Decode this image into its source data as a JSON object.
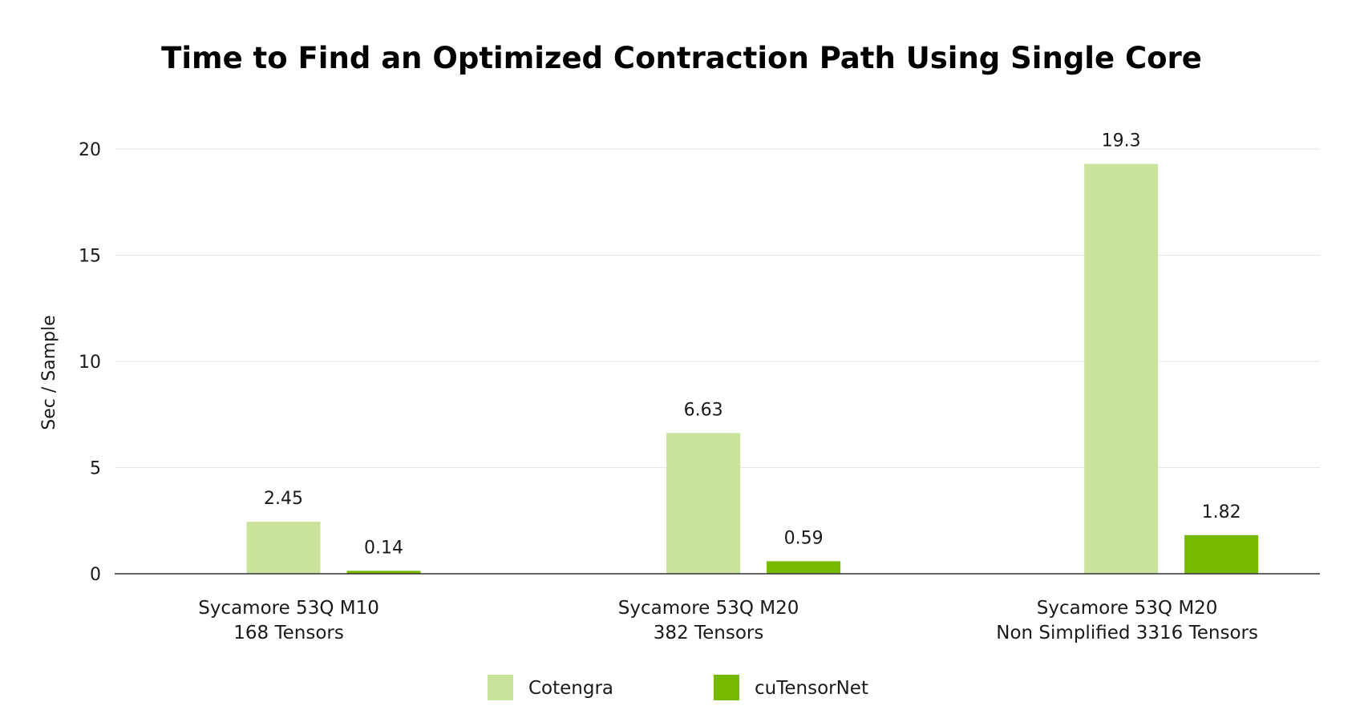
{
  "chart_data": {
    "type": "bar",
    "title": "Time to Find an Optimized Contraction Path Using Single Core",
    "xlabel": "",
    "ylabel": "Sec / Sample",
    "ylim": [
      0,
      20
    ],
    "yticks": [
      0,
      5,
      10,
      15,
      20
    ],
    "grid": true,
    "legend_position": "bottom-center",
    "categories": [
      [
        "Sycamore 53Q M10",
        "168 Tensors"
      ],
      [
        "Sycamore 53Q M20",
        "382 Tensors"
      ],
      [
        "Sycamore 53Q M20",
        "Non Simplified 3316 Tensors"
      ]
    ],
    "series": [
      {
        "name": "Cotengra",
        "color": "#c9e39c",
        "values": [
          2.45,
          6.63,
          19.3
        ],
        "labels": [
          "2.45",
          "6.63",
          "19.3"
        ]
      },
      {
        "name": "cuTensorNet",
        "color": "#76b900",
        "values": [
          0.14,
          0.59,
          1.82
        ],
        "labels": [
          "0.14",
          "0.59",
          "1.82"
        ]
      }
    ]
  }
}
